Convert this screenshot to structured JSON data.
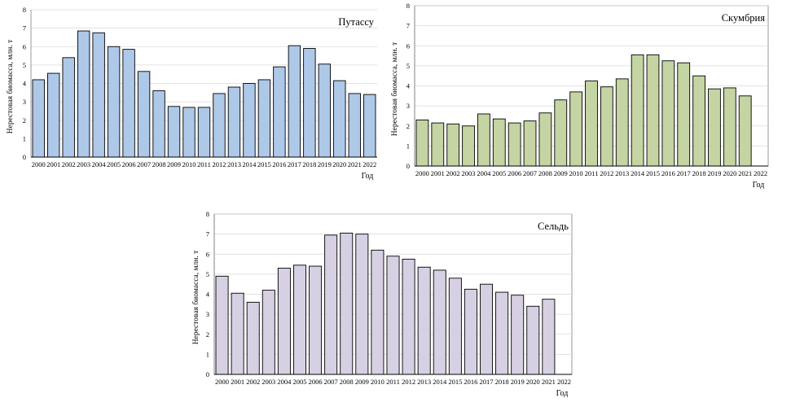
{
  "chart_data": [
    {
      "type": "bar",
      "title": "Путассу",
      "xlabel": "Год",
      "ylabel": "Нерестовая биомасса, млн. т",
      "ylim": [
        0,
        8
      ],
      "yticks": [
        0,
        1,
        2,
        3,
        4,
        5,
        6,
        7,
        8
      ],
      "grid": true,
      "color": "#aec8e8",
      "categories": [
        "2000",
        "2001",
        "2002",
        "2003",
        "2004",
        "2005",
        "2006",
        "2007",
        "2008",
        "2009",
        "2010",
        "2011",
        "2012",
        "2013",
        "2014",
        "2015",
        "2016",
        "2017",
        "2018",
        "2019",
        "2020",
        "2021",
        "2022"
      ],
      "values": [
        4.2,
        4.55,
        5.4,
        6.85,
        6.75,
        6.0,
        5.85,
        4.65,
        3.6,
        2.75,
        2.7,
        2.7,
        3.45,
        3.8,
        4.0,
        4.2,
        4.9,
        6.05,
        5.9,
        5.05,
        4.15,
        3.45,
        3.4
      ]
    },
    {
      "type": "bar",
      "title": "Скумбрия",
      "xlabel": "Год",
      "ylabel": "Нерестовая биомасса, млн. т",
      "ylim": [
        0,
        8
      ],
      "yticks": [
        0,
        1,
        2,
        3,
        4,
        5,
        6,
        7,
        8
      ],
      "grid": true,
      "color": "#c4d4a2",
      "categories": [
        "2000",
        "2001",
        "2002",
        "2003",
        "2004",
        "2005",
        "2006",
        "2007",
        "2008",
        "2009",
        "2010",
        "2011",
        "2012",
        "2013",
        "2014",
        "2015",
        "2016",
        "2017",
        "2018",
        "2019",
        "2020",
        "2021",
        "2022"
      ],
      "values": [
        2.3,
        2.15,
        2.1,
        2.0,
        2.6,
        2.35,
        2.15,
        2.25,
        2.65,
        3.3,
        3.7,
        4.25,
        3.95,
        4.35,
        5.55,
        5.55,
        5.25,
        5.15,
        4.5,
        3.85,
        3.9,
        3.5,
        null
      ]
    },
    {
      "type": "bar",
      "title": "Сельдь",
      "xlabel": "Год",
      "ylabel": "Нерестовая биомасса, млн. т",
      "ylim": [
        0,
        8
      ],
      "yticks": [
        0,
        1,
        2,
        3,
        4,
        5,
        6,
        7,
        8
      ],
      "grid": true,
      "color": "#d7d0e3",
      "categories": [
        "2000",
        "2001",
        "2002",
        "2003",
        "2004",
        "2005",
        "2006",
        "2007",
        "2008",
        "2009",
        "2010",
        "2011",
        "2012",
        "2013",
        "2014",
        "2015",
        "2016",
        "2017",
        "2018",
        "2019",
        "2020",
        "2021",
        "2022"
      ],
      "values": [
        4.9,
        4.05,
        3.6,
        4.2,
        5.3,
        5.45,
        5.4,
        6.95,
        7.05,
        7.0,
        6.2,
        5.9,
        5.75,
        5.35,
        5.2,
        4.8,
        4.25,
        4.5,
        4.1,
        3.95,
        3.4,
        3.75,
        null
      ]
    }
  ]
}
